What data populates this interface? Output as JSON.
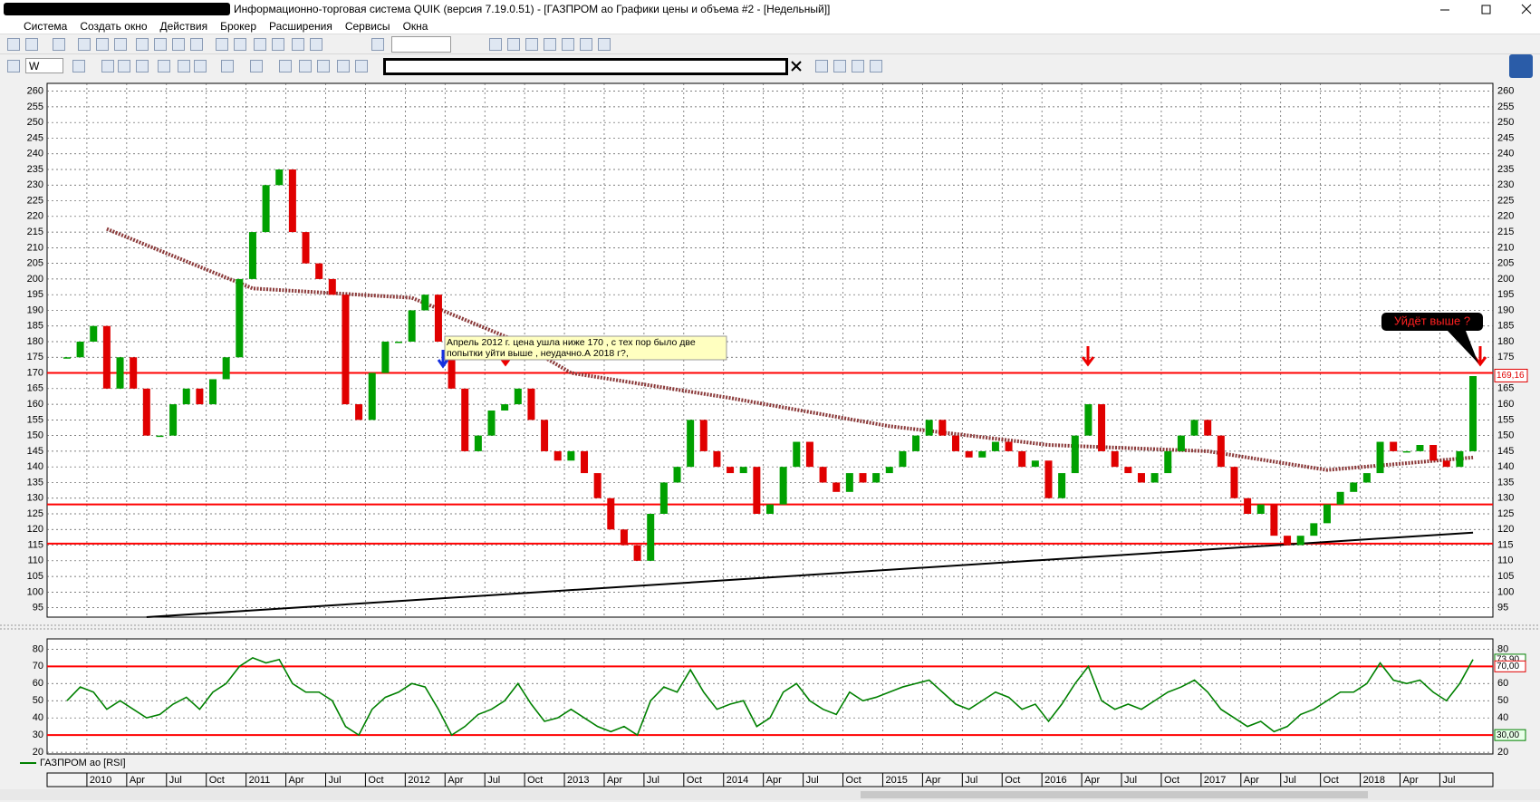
{
  "window": {
    "title": "Информационно-торговая система QUIK (версия 7.19.0.51) - [ГАЗПРОМ ао Графики цены и объема #2 - [Недельный]]",
    "menu": [
      "Система",
      "Создать окно",
      "Действия",
      "Брокер",
      "Расширения",
      "Сервисы",
      "Окна"
    ],
    "interval": "W"
  },
  "chart_data": [
    {
      "type": "candlestick",
      "x": [
        "2009-11",
        "2009-12",
        "2010-01",
        "2010-02",
        "2010-03",
        "2010-04",
        "2010-05",
        "2010-06",
        "2010-07",
        "2010-08",
        "2010-09",
        "2010-10",
        "2010-11",
        "2010-12",
        "2011-01",
        "2011-02",
        "2011-03",
        "2011-04",
        "2011-05",
        "2011-06",
        "2011-07",
        "2011-08",
        "2011-09",
        "2011-10",
        "2011-11",
        "2011-12",
        "2012-01",
        "2012-02",
        "2012-03",
        "2012-04",
        "2012-05",
        "2012-06",
        "2012-07",
        "2012-08",
        "2012-09",
        "2012-10",
        "2012-11",
        "2012-12",
        "2013-01",
        "2013-02",
        "2013-03",
        "2013-04",
        "2013-05",
        "2013-06",
        "2013-07",
        "2013-08",
        "2013-09",
        "2013-10",
        "2013-11",
        "2013-12",
        "2014-01",
        "2014-02",
        "2014-03",
        "2014-04",
        "2014-05",
        "2014-06",
        "2014-07",
        "2014-08",
        "2014-09",
        "2014-10",
        "2014-11",
        "2014-12",
        "2015-01",
        "2015-02",
        "2015-03",
        "2015-04",
        "2015-05",
        "2015-06",
        "2015-07",
        "2015-08",
        "2015-09",
        "2015-10",
        "2015-11",
        "2015-12",
        "2016-01",
        "2016-02",
        "2016-03",
        "2016-04",
        "2016-05",
        "2016-06",
        "2016-07",
        "2016-08",
        "2016-09",
        "2016-10",
        "2016-11",
        "2016-12",
        "2017-01",
        "2017-02",
        "2017-03",
        "2017-04",
        "2017-05",
        "2017-06",
        "2017-07",
        "2017-08",
        "2017-09",
        "2017-10",
        "2017-11",
        "2017-12",
        "2018-01",
        "2018-02",
        "2018-03",
        "2018-04",
        "2018-05",
        "2018-06",
        "2018-07",
        "2018-08",
        "2018-09"
      ],
      "values": [
        175,
        180,
        185,
        165,
        175,
        165,
        150,
        150,
        160,
        165,
        160,
        168,
        175,
        200,
        215,
        230,
        235,
        215,
        205,
        200,
        195,
        160,
        155,
        170,
        180,
        180,
        190,
        195,
        180,
        165,
        145,
        150,
        158,
        160,
        165,
        155,
        145,
        142,
        145,
        138,
        130,
        120,
        115,
        110,
        125,
        135,
        140,
        155,
        145,
        140,
        138,
        140,
        125,
        128,
        140,
        148,
        140,
        135,
        132,
        138,
        135,
        138,
        140,
        145,
        150,
        155,
        150,
        145,
        143,
        145,
        148,
        145,
        140,
        142,
        130,
        138,
        150,
        160,
        145,
        140,
        138,
        135,
        138,
        145,
        150,
        155,
        150,
        140,
        130,
        125,
        128,
        118,
        115,
        118,
        122,
        128,
        132,
        135,
        138,
        148,
        145,
        145,
        147,
        142,
        140,
        145,
        169
      ],
      "color_up": "#00a000",
      "color_down": "#e00000",
      "ma": {
        "x": [
          "2010-02",
          "2011-01",
          "2012-01",
          "2012-09",
          "2013-01",
          "2014-01",
          "2015-01",
          "2016-01",
          "2017-01",
          "2017-10",
          "2018-09"
        ],
        "values": [
          216,
          197,
          194,
          180,
          170,
          162,
          153,
          147,
          145,
          139,
          143
        ],
        "color": "#8b3a3a"
      },
      "levels": [
        170,
        128,
        115.5
      ],
      "level_color": "#ff0000",
      "trend_line": {
        "x": [
          "2010-05",
          "2018-09"
        ],
        "values": [
          92,
          119
        ],
        "color": "#000000"
      },
      "last_price": {
        "value": 169.16,
        "label": "169,16"
      },
      "annotations": [
        "Апрель 2012 г. цена ушла ниже 170 , с тех пор было две попытки уйти выше , неудачно.А 2018 г?,",
        "Уйдёт выше ?"
      ],
      "xlim": [
        "2009-10",
        "2018-11"
      ],
      "xticks": [
        {
          "value": "2010-01",
          "label": "2010"
        },
        {
          "value": "2010-04",
          "label": "Apr"
        },
        {
          "value": "2010-07",
          "label": "Jul"
        },
        {
          "value": "2010-10",
          "label": "Oct"
        },
        {
          "value": "2011-01",
          "label": "2011"
        },
        {
          "value": "2011-04",
          "label": "Apr"
        },
        {
          "value": "2011-07",
          "label": "Jul"
        },
        {
          "value": "2011-10",
          "label": "Oct"
        },
        {
          "value": "2012-01",
          "label": "2012"
        },
        {
          "value": "2012-04",
          "label": "Apr"
        },
        {
          "value": "2012-07",
          "label": "Jul"
        },
        {
          "value": "2012-10",
          "label": "Oct"
        },
        {
          "value": "2013-01",
          "label": "2013"
        },
        {
          "value": "2013-04",
          "label": "Apr"
        },
        {
          "value": "2013-07",
          "label": "Jul"
        },
        {
          "value": "2013-10",
          "label": "Oct"
        },
        {
          "value": "2014-01",
          "label": "2014"
        },
        {
          "value": "2014-04",
          "label": "Apr"
        },
        {
          "value": "2014-07",
          "label": "Jul"
        },
        {
          "value": "2014-10",
          "label": "Oct"
        },
        {
          "value": "2015-01",
          "label": "2015"
        },
        {
          "value": "2015-04",
          "label": "Apr"
        },
        {
          "value": "2015-07",
          "label": "Jul"
        },
        {
          "value": "2015-10",
          "label": "Oct"
        },
        {
          "value": "2016-01",
          "label": "2016"
        },
        {
          "value": "2016-04",
          "label": "Apr"
        },
        {
          "value": "2016-07",
          "label": "Jul"
        },
        {
          "value": "2016-10",
          "label": "Oct"
        },
        {
          "value": "2017-01",
          "label": "2017"
        },
        {
          "value": "2017-04",
          "label": "Apr"
        },
        {
          "value": "2017-07",
          "label": "Jul"
        },
        {
          "value": "2017-10",
          "label": "Oct"
        },
        {
          "value": "2018-01",
          "label": "2018"
        },
        {
          "value": "2018-04",
          "label": "Apr"
        },
        {
          "value": "2018-07",
          "label": "Jul"
        }
      ],
      "ylim": [
        92,
        262.5
      ],
      "yticks": [
        95,
        100,
        105,
        110,
        115,
        120,
        125,
        130,
        135,
        140,
        145,
        150,
        155,
        160,
        165,
        170,
        175,
        180,
        185,
        190,
        195,
        200,
        205,
        210,
        215,
        220,
        225,
        230,
        235,
        240,
        245,
        250,
        255,
        260
      ],
      "grid": true
    },
    {
      "type": "line",
      "values": [
        50,
        58,
        55,
        45,
        50,
        45,
        40,
        42,
        48,
        52,
        45,
        55,
        60,
        70,
        75,
        72,
        74,
        60,
        55,
        55,
        50,
        35,
        30,
        45,
        52,
        55,
        60,
        58,
        45,
        30,
        35,
        42,
        45,
        50,
        60,
        48,
        38,
        40,
        45,
        40,
        35,
        32,
        35,
        30,
        50,
        58,
        55,
        68,
        55,
        45,
        48,
        50,
        35,
        40,
        55,
        60,
        50,
        45,
        42,
        55,
        50,
        52,
        55,
        58,
        60,
        62,
        55,
        48,
        45,
        50,
        55,
        52,
        45,
        48,
        38,
        48,
        60,
        70,
        50,
        45,
        48,
        45,
        50,
        55,
        58,
        62,
        55,
        45,
        40,
        35,
        38,
        32,
        35,
        42,
        45,
        50,
        55,
        55,
        60,
        72,
        62,
        60,
        62,
        55,
        50,
        60,
        74
      ],
      "color": "#008000",
      "legend": "ГАЗПРОМ ао [RSI]",
      "levels": [
        70,
        30
      ],
      "level_color": "#ff0000",
      "value_labels": [
        {
          "value": 73.9,
          "label": "73,90"
        },
        {
          "value": 70,
          "label": "70,00"
        },
        {
          "value": 30,
          "label": "30,00"
        }
      ],
      "ylim": [
        19,
        86
      ],
      "yticks": [
        20,
        30,
        40,
        50,
        60,
        70,
        80
      ],
      "grid": true
    }
  ]
}
